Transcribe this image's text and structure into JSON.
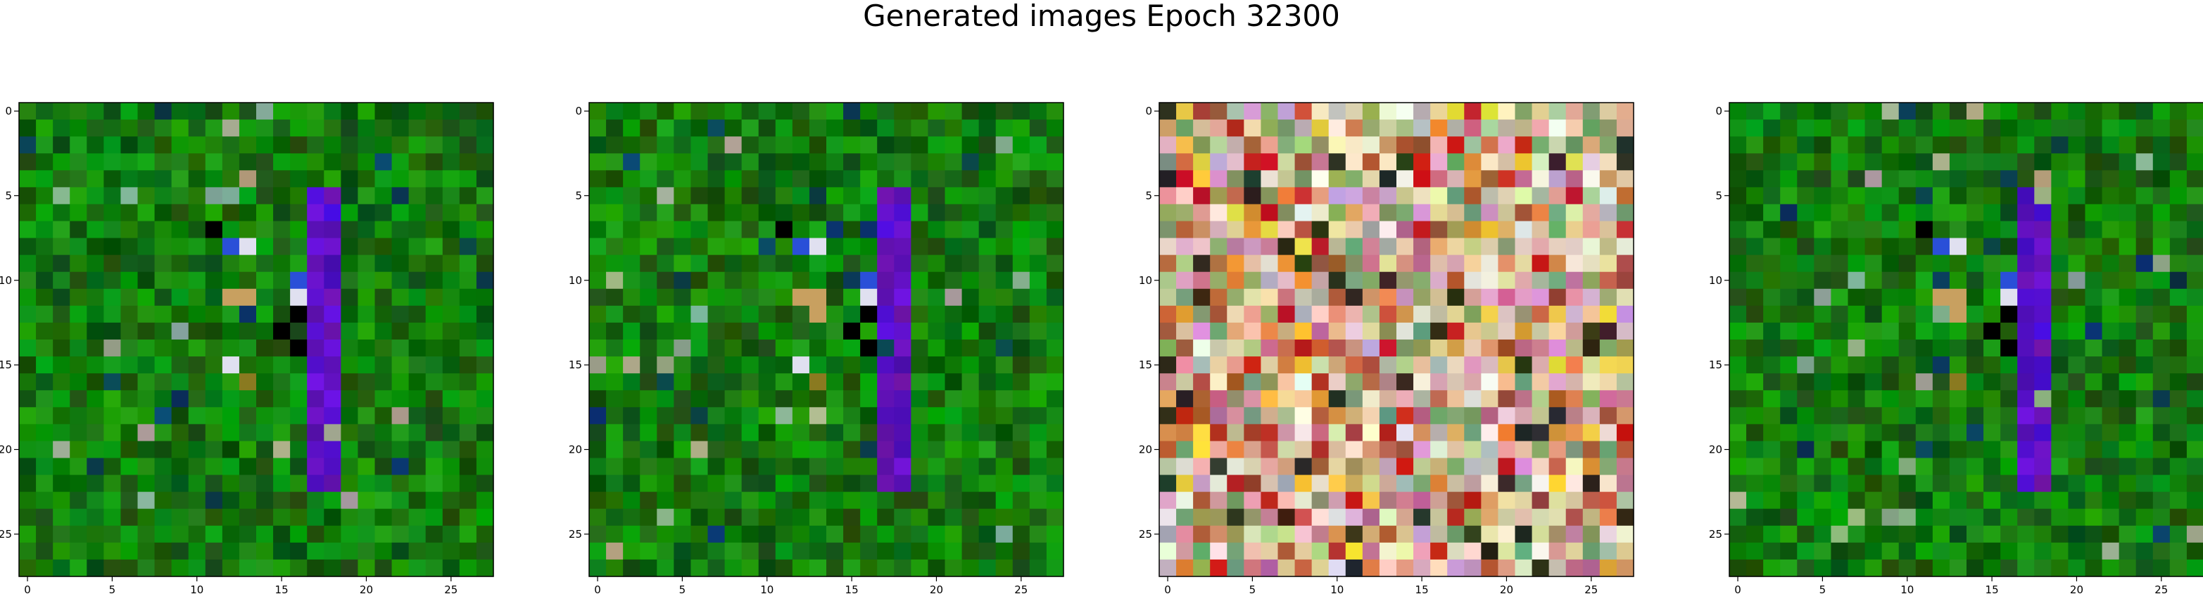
{
  "figure": {
    "title": "Generated images Epoch 32300"
  },
  "chart_data": [
    {
      "type": "heatmap",
      "image_size": 28,
      "x_ticks": [
        0,
        5,
        10,
        15,
        20,
        25
      ],
      "y_ticks": [
        0,
        5,
        10,
        15,
        20,
        25
      ],
      "xlim": [
        -0.5,
        27.5
      ],
      "ylim": [
        27.5,
        -0.5
      ],
      "palette": "green",
      "figure_stroke_color": "#6a1fe6",
      "figure_accent_colors": [
        "#2a4fd8",
        "#c8a060",
        "#e0e0f0",
        "#000000",
        "#8a7a20"
      ]
    },
    {
      "type": "heatmap",
      "image_size": 28,
      "x_ticks": [
        0,
        5,
        10,
        15,
        20,
        25
      ],
      "y_ticks": [
        0,
        5,
        10,
        15,
        20,
        25
      ],
      "xlim": [
        -0.5,
        27.5
      ],
      "ylim": [
        27.5,
        -0.5
      ],
      "palette": "green",
      "figure_stroke_color": "#6a1fe6",
      "figure_accent_colors": [
        "#2a4fd8",
        "#c8a060",
        "#e0e0f0",
        "#000000",
        "#8a7a20"
      ]
    },
    {
      "type": "heatmap",
      "image_size": 28,
      "x_ticks": [
        0,
        5,
        10,
        15,
        20,
        25
      ],
      "y_ticks": [
        0,
        5,
        10,
        15,
        20,
        25
      ],
      "xlim": [
        -0.5,
        27.5
      ],
      "ylim": [
        27.5,
        -0.5
      ],
      "palette": "multicolor-noise",
      "palette_colors": [
        "#e8c8a0",
        "#d8a070",
        "#f0e0d0",
        "#c06040",
        "#e8b0c0",
        "#d8d0a0",
        "#b8c890",
        "#e09040",
        "#c02020",
        "#a05030",
        "#f0f0e0",
        "#d0a0d0",
        "#90a060",
        "#f0d040",
        "#e8e8b0",
        "#70a070",
        "#c07090",
        "#b0b0b0",
        "#303020",
        "#e0a0a0"
      ]
    },
    {
      "type": "heatmap",
      "image_size": 28,
      "x_ticks": [
        0,
        5,
        10,
        15,
        20,
        25
      ],
      "y_ticks": [
        0,
        5,
        10,
        15,
        20,
        25
      ],
      "xlim": [
        -0.5,
        27.5
      ],
      "ylim": [
        27.5,
        -0.5
      ],
      "palette": "green",
      "figure_stroke_color": "#6a1fe6",
      "figure_accent_colors": [
        "#2a4fd8",
        "#c8a060",
        "#e0e0f0",
        "#000000",
        "#8a7a20"
      ]
    }
  ]
}
